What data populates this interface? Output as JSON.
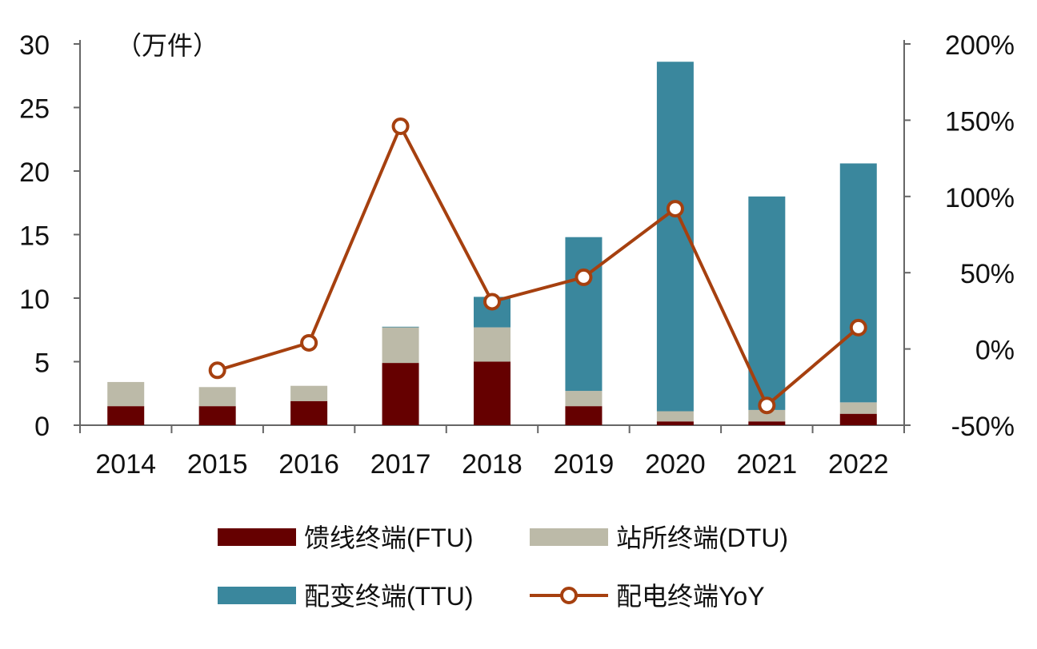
{
  "chart_data": {
    "type": "bar",
    "stacked": true,
    "categories": [
      "2014",
      "2015",
      "2016",
      "2017",
      "2018",
      "2019",
      "2020",
      "2021",
      "2022"
    ],
    "unit_label": "（万件）",
    "ylim": [
      0,
      30
    ],
    "yticks": [
      0,
      5,
      10,
      15,
      20,
      25,
      30
    ],
    "y2lim": [
      -50,
      200
    ],
    "y2ticks": [
      "-50%",
      "0%",
      "50%",
      "100%",
      "150%",
      "200%"
    ],
    "grid": false,
    "legend_position": "bottom",
    "series": [
      {
        "name": "馈线终端(FTU)",
        "type": "bar",
        "color": "#650000",
        "values": [
          1.5,
          1.5,
          1.9,
          4.9,
          5.0,
          1.5,
          0.3,
          0.3,
          0.9
        ]
      },
      {
        "name": "站所终端(DTU)",
        "type": "bar",
        "color": "#bcbaa8",
        "values": [
          1.9,
          1.5,
          1.2,
          2.8,
          2.7,
          1.2,
          0.8,
          0.9,
          0.9
        ]
      },
      {
        "name": "配变终端(TTU)",
        "type": "bar",
        "color": "#3a879d",
        "values": [
          0,
          0,
          0,
          0.05,
          2.4,
          12.1,
          27.5,
          16.8,
          18.8
        ]
      },
      {
        "name": "配电终端YoY",
        "type": "line",
        "axis": "right",
        "color": "#a6400f",
        "values": [
          null,
          -14,
          4,
          146,
          31,
          47,
          92,
          -37,
          14
        ]
      }
    ]
  }
}
